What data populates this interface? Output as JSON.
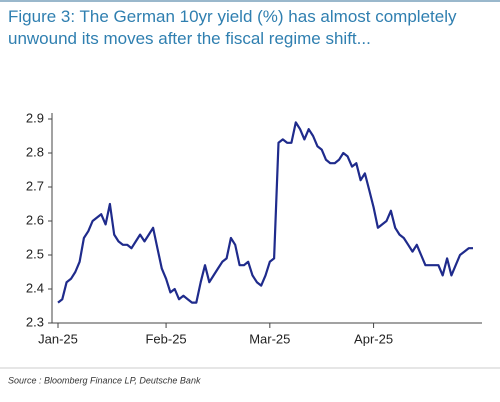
{
  "chart_data": {
    "type": "line",
    "title": "Figure 3: The German 10yr yield (%) has almost completely unwound its moves after the fiscal regime shift...",
    "source": "Source : Bloomberg Finance LP, Deutsche Bank",
    "color": "#1f2b8c",
    "categories": [
      "Jan-25",
      null,
      null,
      null,
      null,
      null,
      null,
      null,
      null,
      null,
      null,
      null,
      null,
      null,
      null,
      null,
      null,
      null,
      null,
      null,
      null,
      null,
      null,
      null,
      null,
      "Feb-25",
      null,
      null,
      null,
      null,
      null,
      null,
      null,
      null,
      null,
      null,
      null,
      null,
      null,
      null,
      null,
      null,
      null,
      null,
      null,
      null,
      null,
      null,
      null,
      "Mar-25",
      null,
      null,
      null,
      null,
      null,
      null,
      null,
      null,
      null,
      null,
      null,
      null,
      null,
      null,
      null,
      null,
      null,
      null,
      null,
      null,
      null,
      null,
      null,
      "Apr-25",
      null,
      null,
      null,
      null,
      null,
      null,
      null,
      null,
      null,
      null,
      null,
      null,
      null,
      null,
      null,
      null,
      null,
      null,
      null,
      null,
      null,
      null,
      null
    ],
    "values": [
      2.36,
      2.37,
      2.42,
      2.43,
      2.45,
      2.48,
      2.55,
      2.57,
      2.6,
      2.61,
      2.62,
      2.59,
      2.65,
      2.56,
      2.54,
      2.53,
      2.53,
      2.52,
      2.54,
      2.56,
      2.54,
      2.56,
      2.58,
      2.52,
      2.46,
      2.43,
      2.39,
      2.4,
      2.37,
      2.38,
      2.37,
      2.36,
      2.36,
      2.42,
      2.47,
      2.42,
      2.44,
      2.46,
      2.48,
      2.49,
      2.55,
      2.53,
      2.47,
      2.47,
      2.48,
      2.44,
      2.42,
      2.41,
      2.44,
      2.48,
      2.49,
      2.83,
      2.84,
      2.83,
      2.83,
      2.89,
      2.87,
      2.84,
      2.87,
      2.85,
      2.82,
      2.81,
      2.78,
      2.77,
      2.77,
      2.78,
      2.8,
      2.79,
      2.76,
      2.77,
      2.72,
      2.74,
      2.69,
      2.64,
      2.58,
      2.59,
      2.6,
      2.63,
      2.58,
      2.56,
      2.55,
      2.53,
      2.51,
      2.53,
      2.5,
      2.47,
      2.47,
      2.47,
      2.47,
      2.44,
      2.49,
      2.44,
      2.47,
      2.5,
      2.51,
      2.52,
      2.52
    ],
    "ylim": [
      2.3,
      2.9
    ],
    "yticks": [
      2.3,
      2.4,
      2.5,
      2.6,
      2.7,
      2.8,
      2.9
    ]
  }
}
